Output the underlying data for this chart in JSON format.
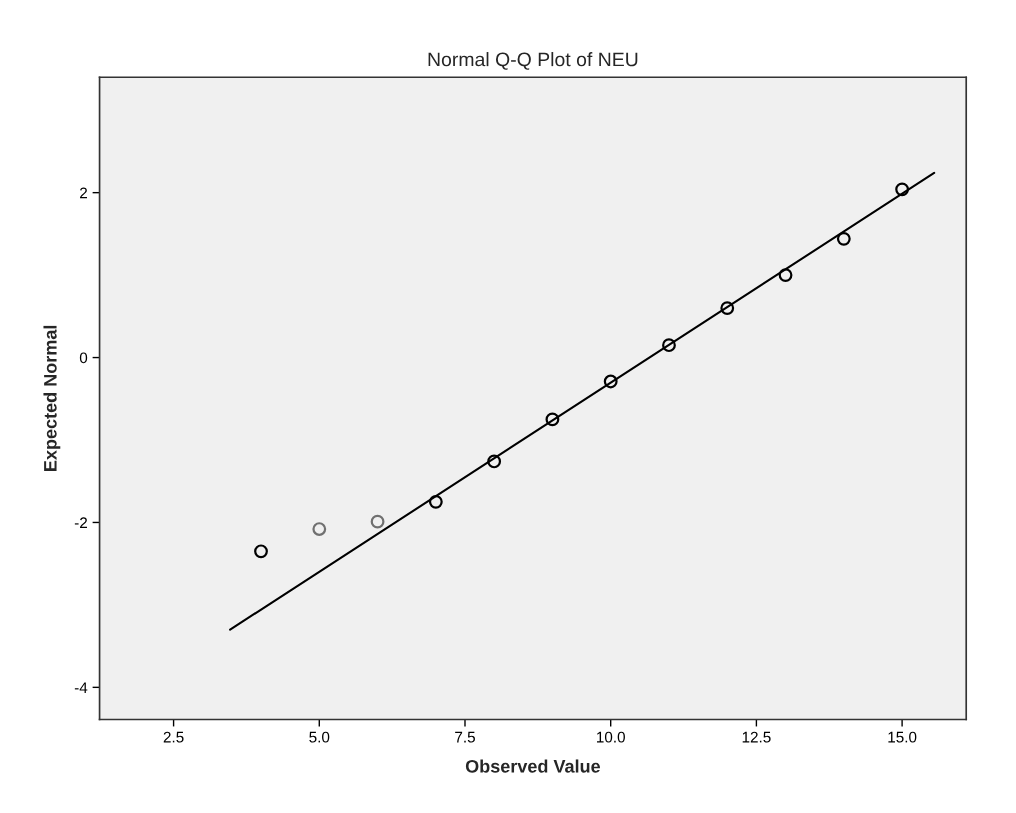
{
  "chart_data": {
    "type": "scatter",
    "title": "Normal Q-Q Plot of NEU",
    "xlabel": "Observed Value",
    "ylabel": "Expected Normal",
    "xlim": [
      1.23,
      16.1
    ],
    "ylim": [
      -4.39,
      3.4
    ],
    "xticks": [
      {
        "value": 2.5,
        "label": "2.5"
      },
      {
        "value": 5,
        "label": "5.0"
      },
      {
        "value": 7.5,
        "label": "7.5"
      },
      {
        "value": 10,
        "label": "10.0"
      },
      {
        "value": 12.5,
        "label": "12.5"
      },
      {
        "value": 15,
        "label": "15.0"
      }
    ],
    "yticks": [
      -4,
      -2,
      0,
      2
    ],
    "grid": false,
    "legend": false,
    "series": [
      {
        "marker": "circle",
        "x": [
          4,
          5,
          6,
          7,
          8,
          9,
          10,
          11,
          12,
          13,
          14,
          15
        ],
        "values": [
          -2.35,
          -2.08,
          -1.99,
          -1.75,
          -1.26,
          -0.75,
          -0.29,
          0.15,
          0.6,
          1.0,
          1.44,
          2.04
        ],
        "colors": [
          "#000000",
          "#707070",
          "#707070",
          "#000000",
          "#000000",
          "#000000",
          "#000000",
          "#000000",
          "#000000",
          "#000000",
          "#000000",
          "#000000"
        ]
      },
      {
        "type": "line",
        "x": [
          3.47,
          15.55
        ],
        "values": [
          -3.3,
          2.24
        ],
        "color": "#000000",
        "line_style": "solid"
      }
    ]
  }
}
